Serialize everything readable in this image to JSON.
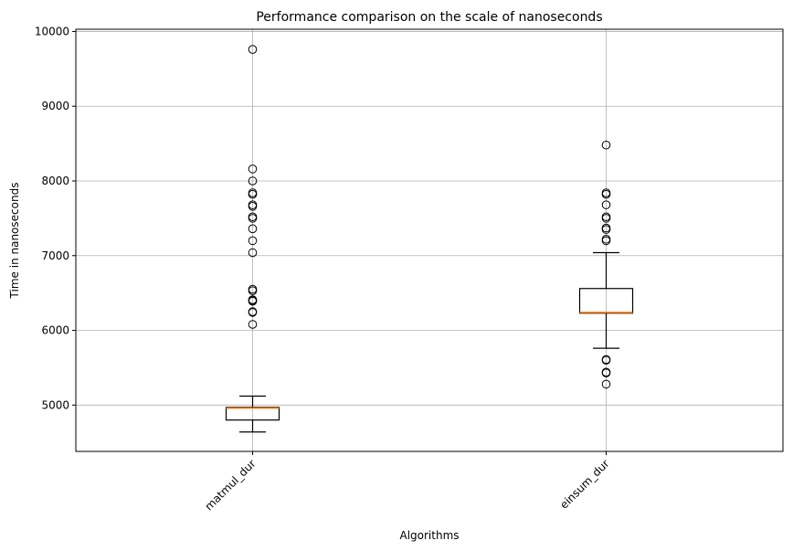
{
  "chart_data": {
    "type": "box",
    "title": "Performance comparison on the scale of nanoseconds",
    "xlabel": "Algorithms",
    "ylabel": "Time in nanoseconds",
    "ylim": [
      4380,
      10030
    ],
    "yticks": [
      5000,
      6000,
      7000,
      8000,
      9000,
      10000
    ],
    "grid": true,
    "categories": [
      "matmul_dur",
      "einsum_dur"
    ],
    "series": [
      {
        "category": "matmul_dur",
        "whisker_low": 4640,
        "q1": 4800,
        "median": 4960,
        "q3": 4970,
        "whisker_high": 5120,
        "outliers": [
          6080,
          6240,
          6250,
          6390,
          6400,
          6410,
          6530,
          6550,
          7040,
          7200,
          7360,
          7500,
          7520,
          7660,
          7680,
          7820,
          7840,
          8000,
          8160,
          9760
        ]
      },
      {
        "category": "einsum_dur",
        "whisker_low": 5760,
        "q1": 6230,
        "median": 6240,
        "q3": 6560,
        "whisker_high": 7040,
        "outliers": [
          5280,
          5430,
          5440,
          5600,
          5610,
          7200,
          7220,
          7350,
          7370,
          7500,
          7520,
          7680,
          7820,
          7840,
          8480
        ]
      }
    ],
    "colors": {
      "box": "#000000",
      "median": "#ff7f0e",
      "grid": "#b0b0b0"
    }
  }
}
